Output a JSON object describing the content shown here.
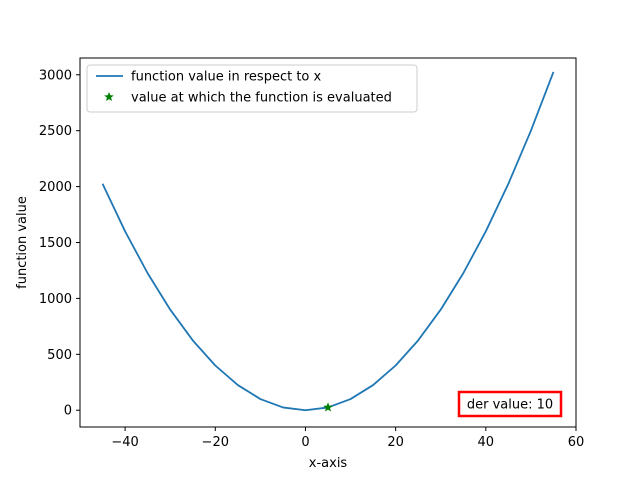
{
  "chart_data": {
    "type": "line",
    "title": "",
    "xlabel": "x-axis",
    "ylabel": "function value",
    "xlim": [
      -50,
      60
    ],
    "ylim": [
      -150,
      3150
    ],
    "xticks": [
      -40,
      -20,
      0,
      20,
      40,
      60
    ],
    "xtick_labels": [
      "−40",
      "−20",
      "0",
      "20",
      "40",
      "60"
    ],
    "yticks": [
      0,
      500,
      1000,
      1500,
      2000,
      2500,
      3000
    ],
    "ytick_labels": [
      "0",
      "500",
      "1000",
      "1500",
      "2000",
      "2500",
      "3000"
    ],
    "grid": false,
    "legend_position": "top-left",
    "series": [
      {
        "name": "function value in respect to x",
        "kind": "line",
        "color": "#1f77b4",
        "x": [
          -45,
          -40,
          -35,
          -30,
          -25,
          -20,
          -15,
          -10,
          -5,
          0,
          5,
          10,
          15,
          20,
          25,
          30,
          35,
          40,
          45,
          50,
          55
        ],
        "y": [
          2025,
          1600,
          1225,
          900,
          625,
          400,
          225,
          100,
          25,
          0,
          25,
          100,
          225,
          400,
          625,
          900,
          1225,
          1600,
          2025,
          2500,
          3025
        ]
      },
      {
        "name": "value at which the function is evaluated",
        "kind": "marker",
        "marker": "star",
        "color": "#008000",
        "x": [
          5
        ],
        "y": [
          25
        ]
      }
    ],
    "annotation": {
      "text": "der value: 10",
      "position": "bottom-right",
      "border_color": "#ff0000"
    }
  }
}
